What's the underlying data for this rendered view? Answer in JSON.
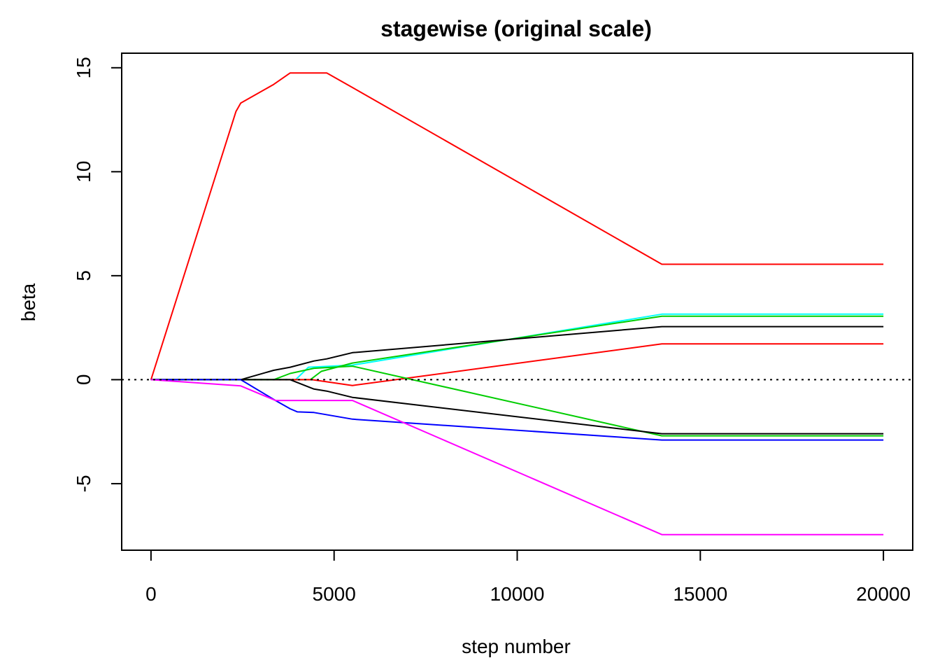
{
  "chart_data": {
    "type": "line",
    "title": "stagewise (original scale)",
    "xlabel": "step number",
    "ylabel": "beta",
    "xlim": [
      -800,
      20800
    ],
    "ylim": [
      -8.2,
      15.7
    ],
    "x_ticks": [
      0,
      5000,
      10000,
      15000,
      20000
    ],
    "x_tick_labels": [
      "0",
      "5000",
      "10000",
      "15000",
      "20000"
    ],
    "y_ticks": [
      -5,
      0,
      5,
      10,
      15
    ],
    "y_tick_labels": [
      "-5",
      "0",
      "5",
      "10",
      "15"
    ],
    "grid": false,
    "legend": "none",
    "reference_line": {
      "y": 0,
      "style": "dotted",
      "color": "#000000"
    },
    "series": [
      {
        "color": "#ff0000",
        "points": [
          [
            0,
            0
          ],
          [
            2320,
            12.9
          ],
          [
            2450,
            13.3
          ],
          [
            3350,
            14.2
          ],
          [
            3800,
            14.75
          ],
          [
            4800,
            14.75
          ],
          [
            5500,
            14.05
          ],
          [
            13950,
            5.55
          ],
          [
            20000,
            5.55
          ]
        ]
      },
      {
        "color": "#00ffff",
        "points": [
          [
            0,
            0
          ],
          [
            3950,
            0
          ],
          [
            4300,
            0.6
          ],
          [
            5500,
            0.7
          ],
          [
            13950,
            3.15
          ],
          [
            20000,
            3.15
          ]
        ]
      },
      {
        "color": "#00cd00",
        "points": [
          [
            0,
            0
          ],
          [
            4350,
            0
          ],
          [
            4650,
            0.4
          ],
          [
            5500,
            0.8
          ],
          [
            13950,
            3.05
          ],
          [
            20000,
            3.05
          ]
        ]
      },
      {
        "color": "#000000",
        "points": [
          [
            0,
            0
          ],
          [
            2450,
            0
          ],
          [
            3350,
            0.45
          ],
          [
            3800,
            0.6
          ],
          [
            4450,
            0.9
          ],
          [
            4800,
            1.0
          ],
          [
            5500,
            1.3
          ],
          [
            13950,
            2.55
          ],
          [
            20000,
            2.55
          ]
        ]
      },
      {
        "color": "#ff0000",
        "points": [
          [
            0,
            0
          ],
          [
            4400,
            0
          ],
          [
            5500,
            -0.28
          ],
          [
            13950,
            1.72
          ],
          [
            20000,
            1.72
          ]
        ]
      },
      {
        "color": "#00cd00",
        "points": [
          [
            0,
            0
          ],
          [
            3350,
            0
          ],
          [
            3800,
            0.3
          ],
          [
            4450,
            0.55
          ],
          [
            5500,
            0.65
          ],
          [
            13950,
            -2.7
          ],
          [
            20000,
            -2.7
          ]
        ]
      },
      {
        "color": "#000000",
        "points": [
          [
            0,
            0
          ],
          [
            3800,
            0
          ],
          [
            4450,
            -0.45
          ],
          [
            4800,
            -0.55
          ],
          [
            5500,
            -0.85
          ],
          [
            13950,
            -2.6
          ],
          [
            20000,
            -2.6
          ]
        ]
      },
      {
        "color": "#0000ff",
        "points": [
          [
            0,
            0
          ],
          [
            2450,
            0
          ],
          [
            3400,
            -1.0
          ],
          [
            3800,
            -1.4
          ],
          [
            4000,
            -1.55
          ],
          [
            4450,
            -1.58
          ],
          [
            5500,
            -1.9
          ],
          [
            13950,
            -2.9
          ],
          [
            20000,
            -2.9
          ]
        ]
      },
      {
        "color": "#ff00ff",
        "points": [
          [
            0,
            0
          ],
          [
            2450,
            -0.3
          ],
          [
            3400,
            -1.0
          ],
          [
            5500,
            -1.0
          ],
          [
            13950,
            -7.45
          ],
          [
            20000,
            -7.45
          ]
        ]
      }
    ]
  }
}
